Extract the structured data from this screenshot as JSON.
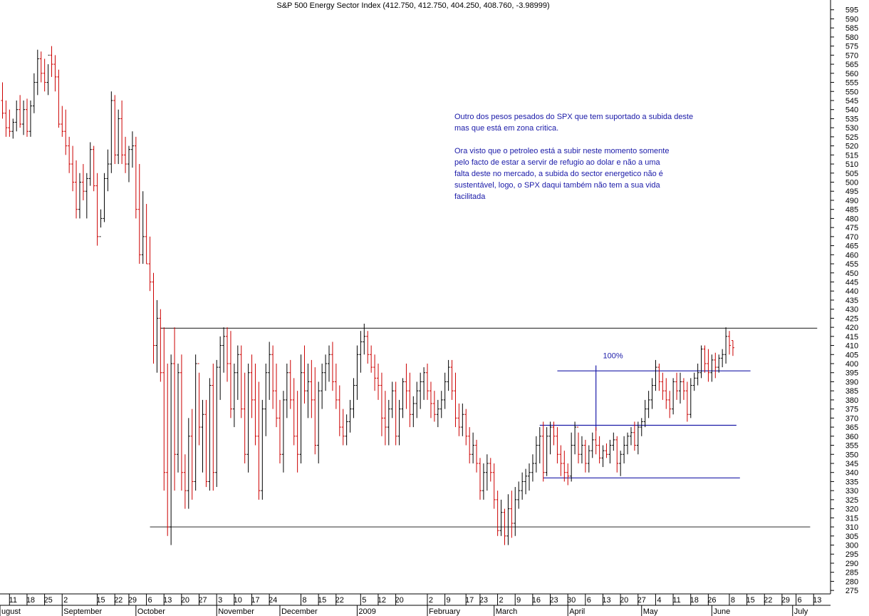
{
  "chart_data": {
    "type": "ohlc",
    "title": "S&P 500 Energy Sector Index (412.750, 412.750, 404.250, 408.760, -3.98999)",
    "ylim": [
      272,
      598
    ],
    "y_ticks": [
      275,
      280,
      285,
      290,
      295,
      300,
      305,
      310,
      315,
      320,
      325,
      330,
      335,
      340,
      345,
      350,
      355,
      360,
      365,
      370,
      375,
      380,
      385,
      390,
      395,
      400,
      405,
      410,
      415,
      420,
      425,
      430,
      435,
      440,
      445,
      450,
      455,
      460,
      465,
      470,
      475,
      480,
      485,
      490,
      495,
      500,
      505,
      510,
      515,
      520,
      525,
      530,
      535,
      540,
      545,
      550,
      555,
      560,
      565,
      570,
      575,
      580,
      585,
      590,
      595
    ],
    "y_axis_position": "right",
    "colors": {
      "up": "#000000",
      "down": "#cc0000",
      "annotation": "#1a1aa8",
      "support_lines": "#444444"
    },
    "x_day_labels": [
      {
        "i": 3,
        "t": "11"
      },
      {
        "i": 8,
        "t": "18"
      },
      {
        "i": 13,
        "t": "25"
      },
      {
        "i": 18,
        "t": "2"
      },
      {
        "i": 28,
        "t": "15"
      },
      {
        "i": 33,
        "t": "22"
      },
      {
        "i": 37,
        "t": "29"
      },
      {
        "i": 42,
        "t": "6"
      },
      {
        "i": 47,
        "t": "13"
      },
      {
        "i": 52,
        "t": "20"
      },
      {
        "i": 57,
        "t": "27"
      },
      {
        "i": 62,
        "t": "3"
      },
      {
        "i": 67,
        "t": "10"
      },
      {
        "i": 72,
        "t": "17"
      },
      {
        "i": 77,
        "t": "24"
      },
      {
        "i": 86,
        "t": "8"
      },
      {
        "i": 91,
        "t": "15"
      },
      {
        "i": 96,
        "t": "22"
      },
      {
        "i": 103,
        "t": "5"
      },
      {
        "i": 108,
        "t": "12"
      },
      {
        "i": 113,
        "t": "20"
      },
      {
        "i": 122,
        "t": "2"
      },
      {
        "i": 127,
        "t": "9"
      },
      {
        "i": 133,
        "t": "17"
      },
      {
        "i": 137,
        "t": "23"
      },
      {
        "i": 142,
        "t": "2"
      },
      {
        "i": 147,
        "t": "9"
      },
      {
        "i": 152,
        "t": "16"
      },
      {
        "i": 157,
        "t": "23"
      },
      {
        "i": 162,
        "t": "30"
      },
      {
        "i": 167,
        "t": "6"
      },
      {
        "i": 172,
        "t": "13"
      },
      {
        "i": 177,
        "t": "20"
      },
      {
        "i": 182,
        "t": "27"
      },
      {
        "i": 187,
        "t": "4"
      },
      {
        "i": 192,
        "t": "11"
      },
      {
        "i": 197,
        "t": "18"
      },
      {
        "i": 202,
        "t": "26"
      },
      {
        "i": 208,
        "t": "8"
      },
      {
        "i": 213,
        "t": "15"
      },
      {
        "i": 218,
        "t": "22"
      },
      {
        "i": 223,
        "t": "29"
      },
      {
        "i": 227,
        "t": "6"
      },
      {
        "i": 232,
        "t": "13"
      }
    ],
    "x_month_labels": [
      {
        "i": -1,
        "t": "ugust"
      },
      {
        "i": 17,
        "t": "September"
      },
      {
        "i": 38,
        "t": "October"
      },
      {
        "i": 61,
        "t": "November"
      },
      {
        "i": 79,
        "t": "December"
      },
      {
        "i": 101,
        "t": "2009"
      },
      {
        "i": 121,
        "t": "February"
      },
      {
        "i": 140,
        "t": "March"
      },
      {
        "i": 161,
        "t": "April"
      },
      {
        "i": 182,
        "t": "May"
      },
      {
        "i": 202,
        "t": "June"
      },
      {
        "i": 225,
        "t": "July"
      }
    ],
    "horizontal_lines": [
      {
        "name": "resistance",
        "y": 419.5,
        "x0": 45,
        "x1": 232,
        "color": "#444444"
      },
      {
        "name": "support",
        "y": 310,
        "x0": 42,
        "x1": 230,
        "color": "#444444"
      },
      {
        "name": "box-top",
        "y": 396,
        "x0": 158,
        "x1": 213,
        "color": "#1a1aa8"
      },
      {
        "name": "box-mid",
        "y": 366,
        "x0": 153,
        "x1": 209,
        "color": "#1a1aa8"
      },
      {
        "name": "box-low",
        "y": 337,
        "x0": 154,
        "x1": 210,
        "color": "#1a1aa8"
      }
    ],
    "measure_line": {
      "i": 169,
      "y0": 363,
      "y1": 399,
      "label": "100%",
      "label_y": 403,
      "label_i": 171
    },
    "bars": [
      [
        545,
        555,
        535,
        538
      ],
      [
        538,
        545,
        525,
        530
      ],
      [
        530,
        540,
        525,
        528
      ],
      [
        528,
        535,
        524,
        533
      ],
      [
        533,
        545,
        528,
        540
      ],
      [
        540,
        548,
        530,
        532
      ],
      [
        532,
        545,
        526,
        540
      ],
      [
        540,
        546,
        525,
        528
      ],
      [
        528,
        545,
        525,
        542
      ],
      [
        542,
        560,
        538,
        555
      ],
      [
        555,
        573,
        548,
        568
      ],
      [
        568,
        572,
        555,
        560
      ],
      [
        560,
        568,
        550,
        555
      ],
      [
        555,
        565,
        548,
        570
      ],
      [
        570,
        575,
        558,
        565
      ],
      [
        565,
        570,
        550,
        558
      ],
      [
        558,
        562,
        530,
        532
      ],
      [
        532,
        542,
        525,
        528
      ],
      [
        528,
        540,
        515,
        520
      ],
      [
        520,
        525,
        505,
        510
      ],
      [
        510,
        520,
        495,
        500
      ],
      [
        500,
        512,
        480,
        485
      ],
      [
        485,
        505,
        480,
        500
      ],
      [
        500,
        510,
        490,
        495
      ],
      [
        495,
        505,
        480,
        502
      ],
      [
        502,
        522,
        498,
        518
      ],
      [
        518,
        520,
        495,
        498
      ],
      [
        498,
        505,
        465,
        470
      ],
      [
        470,
        485,
        475,
        480
      ],
      [
        480,
        505,
        478,
        502
      ],
      [
        502,
        518,
        495,
        510
      ],
      [
        510,
        550,
        505,
        545
      ],
      [
        545,
        548,
        510,
        515
      ],
      [
        515,
        540,
        510,
        535
      ],
      [
        535,
        545,
        510,
        515
      ],
      [
        515,
        525,
        505,
        510
      ],
      [
        510,
        520,
        500,
        518
      ],
      [
        518,
        528,
        508,
        520
      ],
      [
        520,
        525,
        480,
        485
      ],
      [
        485,
        510,
        455,
        460
      ],
      [
        460,
        495,
        455,
        470
      ],
      [
        470,
        488,
        455,
        455
      ],
      [
        455,
        470,
        440,
        445
      ],
      [
        445,
        450,
        400,
        410
      ],
      [
        410,
        435,
        395,
        425
      ],
      [
        425,
        430,
        390,
        395
      ],
      [
        395,
        420,
        330,
        340
      ],
      [
        340,
        400,
        305,
        310
      ],
      [
        310,
        405,
        300,
        400
      ],
      [
        400,
        420,
        330,
        350
      ],
      [
        350,
        400,
        340,
        395
      ],
      [
        395,
        405,
        330,
        340
      ],
      [
        340,
        350,
        320,
        330
      ],
      [
        330,
        370,
        320,
        360
      ],
      [
        360,
        375,
        325,
        335
      ],
      [
        335,
        405,
        330,
        400
      ],
      [
        400,
        395,
        355,
        365
      ],
      [
        365,
        380,
        340,
        372
      ],
      [
        372,
        380,
        332,
        335
      ],
      [
        335,
        392,
        330,
        388
      ],
      [
        388,
        400,
        330,
        340
      ],
      [
        340,
        402,
        332,
        398
      ],
      [
        398,
        415,
        380,
        410
      ],
      [
        410,
        420,
        395,
        415
      ],
      [
        415,
        420,
        390,
        400
      ],
      [
        400,
        418,
        370,
        375
      ],
      [
        375,
        400,
        365,
        395
      ],
      [
        395,
        410,
        380,
        405
      ],
      [
        405,
        410,
        370,
        375
      ],
      [
        375,
        395,
        345,
        350
      ],
      [
        350,
        400,
        340,
        395
      ],
      [
        395,
        405,
        370,
        380
      ],
      [
        380,
        400,
        355,
        360
      ],
      [
        360,
        390,
        325,
        330
      ],
      [
        330,
        380,
        325,
        375
      ],
      [
        375,
        400,
        360,
        395
      ],
      [
        395,
        412,
        380,
        405
      ],
      [
        405,
        410,
        375,
        385
      ],
      [
        385,
        400,
        365,
        370
      ],
      [
        370,
        380,
        345,
        350
      ],
      [
        350,
        385,
        340,
        380
      ],
      [
        380,
        400,
        370,
        395
      ],
      [
        395,
        402,
        375,
        380
      ],
      [
        380,
        392,
        355,
        360
      ],
      [
        360,
        385,
        340,
        350
      ],
      [
        350,
        405,
        345,
        395
      ],
      [
        395,
        410,
        378,
        385
      ],
      [
        385,
        400,
        370,
        390
      ],
      [
        390,
        402,
        370,
        380
      ],
      [
        380,
        398,
        350,
        355
      ],
      [
        355,
        390,
        345,
        385
      ],
      [
        385,
        400,
        375,
        395
      ],
      [
        395,
        405,
        385,
        400
      ],
      [
        400,
        410,
        390,
        405
      ],
      [
        405,
        412,
        385,
        390
      ],
      [
        390,
        400,
        375,
        380
      ],
      [
        380,
        388,
        360,
        365
      ],
      [
        365,
        375,
        355,
        360
      ],
      [
        360,
        372,
        355,
        368
      ],
      [
        368,
        380,
        362,
        375
      ],
      [
        375,
        392,
        370,
        388
      ],
      [
        388,
        410,
        380,
        405
      ],
      [
        405,
        418,
        395,
        412
      ],
      [
        412,
        422,
        405,
        415
      ],
      [
        415,
        418,
        400,
        405
      ],
      [
        405,
        410,
        395,
        398
      ],
      [
        398,
        405,
        385,
        392
      ],
      [
        392,
        400,
        380,
        388
      ],
      [
        388,
        395,
        360,
        370
      ],
      [
        370,
        385,
        355,
        365
      ],
      [
        365,
        380,
        355,
        375
      ],
      [
        375,
        390,
        370,
        385
      ],
      [
        385,
        390,
        355,
        360
      ],
      [
        360,
        380,
        355,
        375
      ],
      [
        375,
        392,
        370,
        390
      ],
      [
        390,
        400,
        375,
        385
      ],
      [
        385,
        395,
        365,
        372
      ],
      [
        372,
        382,
        365,
        378
      ],
      [
        378,
        390,
        370,
        385
      ],
      [
        385,
        395,
        375,
        390
      ],
      [
        390,
        398,
        380,
        395
      ],
      [
        395,
        400,
        380,
        385
      ],
      [
        385,
        390,
        370,
        378
      ],
      [
        378,
        385,
        368,
        372
      ],
      [
        372,
        380,
        365,
        375
      ],
      [
        375,
        385,
        370,
        380
      ],
      [
        380,
        395,
        375,
        390
      ],
      [
        390,
        402,
        385,
        398
      ],
      [
        398,
        402,
        380,
        385
      ],
      [
        385,
        395,
        365,
        370
      ],
      [
        370,
        378,
        360,
        365
      ],
      [
        365,
        378,
        360,
        372
      ],
      [
        372,
        375,
        355,
        360
      ],
      [
        360,
        365,
        345,
        350
      ],
      [
        350,
        362,
        345,
        355
      ],
      [
        355,
        358,
        340,
        345
      ],
      [
        345,
        348,
        325,
        330
      ],
      [
        330,
        345,
        325,
        340
      ],
      [
        340,
        350,
        330,
        345
      ],
      [
        345,
        348,
        335,
        340
      ],
      [
        340,
        345,
        320,
        325
      ],
      [
        325,
        330,
        305,
        308
      ],
      [
        308,
        325,
        305,
        318
      ],
      [
        318,
        320,
        300,
        305
      ],
      [
        305,
        328,
        300,
        320
      ],
      [
        320,
        330,
        304,
        312
      ],
      [
        312,
        332,
        305,
        325
      ],
      [
        325,
        335,
        320,
        330
      ],
      [
        330,
        340,
        325,
        335
      ],
      [
        335,
        342,
        328,
        338
      ],
      [
        338,
        345,
        330,
        340
      ],
      [
        340,
        350,
        335,
        345
      ],
      [
        345,
        360,
        340,
        355
      ],
      [
        355,
        365,
        345,
        360
      ],
      [
        360,
        368,
        335,
        340
      ],
      [
        340,
        365,
        338,
        360
      ],
      [
        360,
        368,
        350,
        365
      ],
      [
        365,
        368,
        355,
        360
      ],
      [
        360,
        365,
        345,
        350
      ],
      [
        350,
        355,
        338,
        345
      ],
      [
        345,
        352,
        335,
        340
      ],
      [
        340,
        345,
        333,
        338
      ],
      [
        338,
        362,
        335,
        355
      ],
      [
        355,
        368,
        350,
        365
      ],
      [
        365,
        362,
        345,
        350
      ],
      [
        350,
        360,
        345,
        355
      ],
      [
        355,
        358,
        340,
        345
      ],
      [
        345,
        355,
        340,
        352
      ],
      [
        352,
        362,
        348,
        358
      ],
      [
        358,
        365,
        350,
        355
      ],
      [
        355,
        360,
        345,
        348
      ],
      [
        348,
        355,
        343,
        352
      ],
      [
        352,
        356,
        348,
        350
      ],
      [
        350,
        358,
        345,
        355
      ],
      [
        355,
        362,
        352,
        358
      ],
      [
        358,
        360,
        340,
        345
      ],
      [
        345,
        352,
        338,
        350
      ],
      [
        350,
        360,
        345,
        355
      ],
      [
        355,
        362,
        350,
        360
      ],
      [
        360,
        365,
        355,
        362
      ],
      [
        362,
        368,
        352,
        355
      ],
      [
        355,
        368,
        350,
        365
      ],
      [
        365,
        370,
        360,
        368
      ],
      [
        368,
        380,
        365,
        375
      ],
      [
        375,
        385,
        370,
        380
      ],
      [
        380,
        392,
        375,
        388
      ],
      [
        388,
        402,
        385,
        398
      ],
      [
        398,
        400,
        385,
        390
      ],
      [
        390,
        395,
        380,
        385
      ],
      [
        385,
        392,
        375,
        380
      ],
      [
        380,
        385,
        370,
        375
      ],
      [
        375,
        392,
        372,
        390
      ],
      [
        390,
        395,
        380,
        385
      ],
      [
        385,
        395,
        378,
        390
      ],
      [
        390,
        392,
        380,
        385
      ],
      [
        385,
        390,
        368,
        372
      ],
      [
        372,
        392,
        370,
        388
      ],
      [
        388,
        395,
        385,
        392
      ],
      [
        392,
        400,
        388,
        395
      ],
      [
        395,
        410,
        392,
        408
      ],
      [
        408,
        410,
        395,
        400
      ],
      [
        400,
        408,
        390,
        395
      ],
      [
        395,
        405,
        390,
        402
      ],
      [
        402,
        406,
        392,
        398
      ],
      [
        398,
        405,
        395,
        403
      ],
      [
        403,
        408,
        398,
        405
      ],
      [
        405,
        420,
        400,
        415
      ],
      [
        415,
        418,
        405,
        410
      ],
      [
        412.75,
        412.75,
        404.25,
        408.76
      ]
    ]
  },
  "annotation": {
    "para1": "Outro dos pesos pesados do SPX que tem suportado a subida deste\nmas que está em zona critica.",
    "para2": "Ora visto que o petroleo está a subir neste momento somente\npelo facto de estar a servir de refugio ao dolar e não a uma\nfalta deste no mercado, a subida do sector energetico não é\nsustentável, logo, o SPX daqui também não tem a sua vida\nfacilitada"
  }
}
